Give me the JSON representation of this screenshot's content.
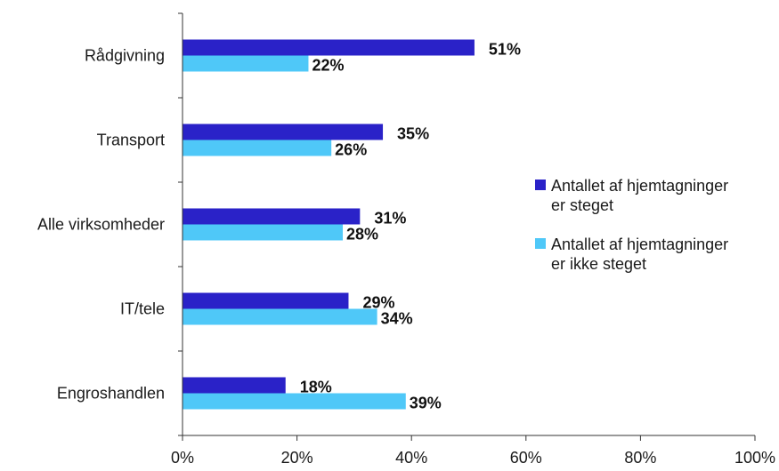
{
  "chart_data": {
    "type": "bar",
    "orientation": "horizontal",
    "categories": [
      "Rådgivning",
      "Transport",
      "Alle virksomheder",
      "IT/tele",
      "Engroshandlen"
    ],
    "series": [
      {
        "name_lines": [
          "Antallet af hjemtagninger",
          "er steget"
        ],
        "color": "#2a22c8",
        "values": [
          51,
          35,
          31,
          29,
          18
        ],
        "labels": [
          "51%",
          "35%",
          "31%",
          "29%",
          "18%"
        ]
      },
      {
        "name_lines": [
          "Antallet af hjemtagninger",
          "er ikke steget"
        ],
        "color": "#4fc8f8",
        "values": [
          22,
          26,
          28,
          34,
          39
        ],
        "labels": [
          "22%",
          "26%",
          "28%",
          "34%",
          "39%"
        ]
      }
    ],
    "xlim": [
      0,
      100
    ],
    "x_ticks": [
      0,
      20,
      40,
      60,
      80,
      100
    ],
    "x_tick_labels": [
      "0%",
      "20%",
      "40%",
      "60%",
      "80%",
      "100%"
    ],
    "grid": false,
    "legend_position": "right"
  }
}
